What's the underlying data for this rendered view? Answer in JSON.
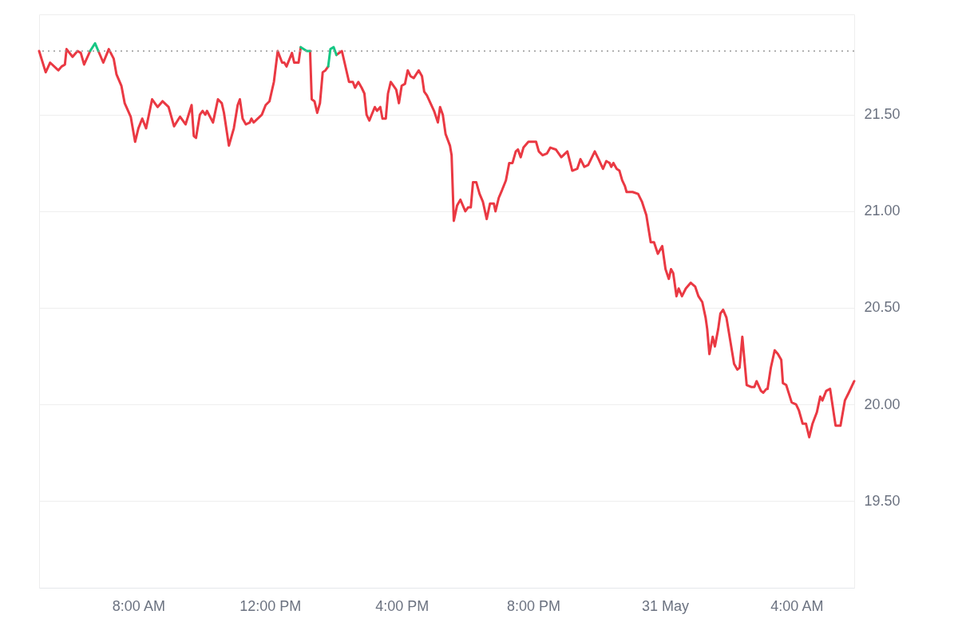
{
  "chart_data": {
    "type": "line",
    "xlim": [
      "--05-30T04:59",
      "--05-31T05:45"
    ],
    "ylim": [
      19.05,
      22.02
    ],
    "xticks": [
      {
        "value": "--05-30T08:00",
        "label": "8:00 AM"
      },
      {
        "value": "--05-30T12:00",
        "label": "12:00 PM"
      },
      {
        "value": "--05-30T16:00",
        "label": "4:00 PM"
      },
      {
        "value": "--05-30T20:00",
        "label": "8:00 PM"
      },
      {
        "value": "--05-31T00:00",
        "label": "31 May"
      },
      {
        "value": "--05-31T04:00",
        "label": "4:00 AM"
      }
    ],
    "yticks": [
      {
        "value": 19.5,
        "label": "19.50"
      },
      {
        "value": 20,
        "label": "20.00"
      },
      {
        "value": 20.5,
        "label": "20.50"
      },
      {
        "value": 21,
        "label": "21.00"
      },
      {
        "value": 21.5,
        "label": "21.50"
      }
    ],
    "grid": "y",
    "marker": "none",
    "line_style": "solid",
    "ref_lines": [
      {
        "axis": "y",
        "value": 21.83,
        "label": null,
        "color": "#999999",
        "line_style": "dotted"
      }
    ],
    "series": [
      {
        "color": "#ea3943",
        "x": [
          "--05-30T04:59",
          "--05-30T05:11",
          "--05-30T05:19",
          "--05-30T05:34",
          "--05-30T05:40",
          "--05-30T05:46",
          "--05-30T05:49",
          "--05-30T06:00",
          "--05-30T06:09",
          "--05-30T06:15",
          "--05-30T06:21",
          "--05-30T06:32",
          "--05-30T06:41",
          "--05-30T06:47",
          "--05-30T06:56",
          "--05-30T07:06",
          "--05-30T07:15",
          "--05-30T07:20",
          "--05-30T07:29",
          "--05-30T07:35",
          "--05-30T07:46",
          "--05-30T07:54",
          "--05-30T08:00",
          "--05-30T08:07",
          "--05-30T08:14",
          "--05-30T08:25",
          "--05-30T08:35",
          "--05-30T08:44",
          "--05-30T08:55",
          "--05-30T09:05",
          "--05-30T09:16",
          "--05-30T09:26",
          "--05-30T09:37",
          "--05-30T09:41",
          "--05-30T09:45",
          "--05-30T09:52",
          "--05-30T09:57",
          "--05-30T10:02",
          "--05-30T10:05",
          "--05-30T10:16",
          "--05-30T10:25",
          "--05-30T10:32",
          "--05-30T10:36",
          "--05-30T10:45",
          "--05-30T10:54",
          "--05-30T11:01",
          "--05-30T11:05",
          "--05-30T11:10",
          "--05-30T11:16",
          "--05-30T11:23",
          "--05-30T11:26",
          "--05-30T11:30",
          "--05-30T11:45",
          "--05-30T11:52",
          "--05-30T11:59",
          "--05-30T12:07",
          "--05-30T12:14",
          "--05-30T12:22",
          "--05-30T12:26",
          "--05-30T12:30",
          "--05-30T12:40",
          "--05-30T12:44",
          "--05-30T12:52",
          "--05-30T12:56",
          "--05-30T13:07",
          "--05-30T13:13",
          "--05-30T13:16",
          "--05-30T13:21",
          "--05-30T13:26",
          "--05-30T13:31",
          "--05-30T13:36",
          "--05-30T13:41",
          "--05-30T13:46",
          "--05-30T13:50",
          "--05-30T13:56",
          "--05-30T14:01",
          "--05-30T14:11",
          "--05-30T14:24",
          "--05-30T14:31",
          "--05-30T14:35",
          "--05-30T14:41",
          "--05-30T14:47",
          "--05-30T14:52",
          "--05-30T14:56",
          "--05-30T15:01",
          "--05-30T15:11",
          "--05-30T15:15",
          "--05-30T15:21",
          "--05-30T15:25",
          "--05-30T15:31",
          "--05-30T15:35",
          "--05-30T15:40",
          "--05-30T15:50",
          "--05-30T15:55",
          "--05-30T16:00",
          "--05-30T16:06",
          "--05-30T16:11",
          "--05-30T16:16",
          "--05-30T16:22",
          "--05-30T16:31",
          "--05-30T16:37",
          "--05-30T16:41",
          "--05-30T16:46",
          "--05-30T16:59",
          "--05-30T17:06",
          "--05-30T17:10",
          "--05-30T17:15",
          "--05-30T17:20",
          "--05-30T17:28",
          "--05-30T17:31",
          "--05-30T17:35",
          "--05-30T17:41",
          "--05-30T17:47",
          "--05-30T17:56",
          "--05-30T18:01",
          "--05-30T18:06",
          "--05-30T18:10",
          "--05-30T18:16",
          "--05-30T18:22",
          "--05-30T18:28",
          "--05-30T18:35",
          "--05-30T18:41",
          "--05-30T18:48",
          "--05-30T18:51",
          "--05-30T18:57",
          "--05-30T19:03",
          "--05-30T19:10",
          "--05-30T19:16",
          "--05-30T19:22",
          "--05-30T19:28",
          "--05-30T19:32",
          "--05-30T19:37",
          "--05-30T19:42",
          "--05-30T19:51",
          "--05-30T20:05",
          "--05-30T20:10",
          "--05-30T20:17",
          "--05-30T20:25",
          "--05-30T20:31",
          "--05-30T20:41",
          "--05-30T20:51",
          "--05-30T21:02",
          "--05-30T21:11",
          "--05-30T21:20",
          "--05-30T21:26",
          "--05-30T21:33",
          "--05-30T21:40",
          "--05-30T21:52",
          "--05-30T21:59",
          "--05-30T22:07",
          "--05-30T22:13",
          "--05-30T22:19",
          "--05-30T22:22",
          "--05-30T22:26",
          "--05-30T22:32",
          "--05-30T22:37",
          "--05-30T22:42",
          "--05-30T22:47",
          "--05-30T22:50",
          "--05-30T23:01",
          "--05-30T23:11",
          "--05-30T23:18",
          "--05-30T23:26",
          "--05-30T23:34",
          "--05-30T23:40",
          "--05-30T23:47",
          "--05-30T23:55",
          "--05-31T00:01",
          "--05-31T00:07",
          "--05-31T00:11",
          "--05-31T00:15",
          "--05-31T00:21",
          "--05-31T00:25",
          "--05-31T00:31",
          "--05-31T00:38",
          "--05-31T00:47",
          "--05-31T00:55",
          "--05-31T01:01",
          "--05-31T01:08",
          "--05-31T01:14",
          "--05-31T01:17",
          "--05-31T01:21",
          "--05-31T01:27",
          "--05-31T01:31",
          "--05-31T01:37",
          "--05-31T01:41",
          "--05-31T01:46",
          "--05-31T01:52",
          "--05-31T01:59",
          "--05-31T02:06",
          "--05-31T02:12",
          "--05-31T02:16",
          "--05-31T02:21",
          "--05-31T02:29",
          "--05-31T02:37",
          "--05-31T02:43",
          "--05-31T02:47",
          "--05-31T02:55",
          "--05-31T02:59",
          "--05-31T03:05",
          "--05-31T03:07",
          "--05-31T03:13",
          "--05-31T03:20",
          "--05-31T03:26",
          "--05-31T03:32",
          "--05-31T03:35",
          "--05-31T03:41",
          "--05-31T03:51",
          "--05-31T03:59",
          "--05-31T04:04",
          "--05-31T04:11",
          "--05-31T04:17",
          "--05-31T04:23",
          "--05-31T04:29",
          "--05-31T04:37",
          "--05-31T04:43",
          "--05-31T04:47",
          "--05-31T04:54",
          "--05-31T05:01",
          "--05-31T05:11",
          "--05-31T05:20",
          "--05-31T05:28",
          "--05-31T05:35",
          "--05-31T05:45"
        ],
        "values": [
          21.83,
          21.72,
          21.77,
          21.73,
          21.75,
          21.76,
          21.84,
          21.8,
          21.83,
          21.82,
          21.76,
          21.83,
          null,
          21.83,
          21.77,
          21.84,
          21.79,
          21.71,
          21.65,
          21.56,
          21.49,
          21.36,
          21.43,
          21.48,
          21.43,
          21.58,
          21.54,
          21.57,
          21.54,
          21.44,
          21.49,
          21.45,
          21.55,
          21.39,
          21.38,
          21.5,
          21.52,
          21.5,
          21.52,
          21.46,
          21.58,
          21.56,
          21.51,
          21.34,
          21.43,
          21.55,
          21.58,
          21.48,
          21.45,
          21.46,
          21.48,
          21.46,
          21.5,
          21.55,
          21.57,
          21.67,
          21.83,
          21.77,
          21.77,
          21.75,
          21.82,
          21.77,
          21.77,
          21.85,
          null,
          21.83,
          21.58,
          21.57,
          21.51,
          21.56,
          21.72,
          21.73,
          21.75,
          null,
          null,
          21.81,
          21.83,
          21.67,
          21.67,
          21.64,
          21.67,
          21.64,
          21.61,
          21.5,
          21.47,
          21.54,
          21.52,
          21.54,
          21.48,
          21.48,
          21.61,
          21.67,
          21.63,
          21.56,
          21.65,
          21.66,
          21.73,
          21.7,
          21.69,
          21.73,
          21.7,
          21.62,
          21.6,
          21.52,
          21.46,
          21.54,
          21.5,
          21.4,
          21.34,
          21.29,
          20.95,
          21.03,
          21.06,
          21.0,
          21.02,
          21.02,
          21.15,
          21.15,
          21.09,
          21.05,
          20.96,
          21.04,
          21.04,
          21.0,
          21.07,
          21.11,
          21.16,
          21.25,
          21.25,
          21.31,
          21.32,
          21.28,
          21.33,
          21.36,
          21.36,
          21.31,
          21.29,
          21.3,
          21.33,
          21.32,
          21.28,
          21.31,
          21.21,
          21.22,
          21.27,
          21.23,
          21.24,
          21.31,
          21.27,
          21.22,
          21.26,
          21.25,
          21.23,
          21.25,
          21.22,
          21.21,
          21.16,
          21.13,
          21.1,
          21.1,
          21.09,
          21.05,
          20.98,
          20.84,
          20.84,
          20.78,
          20.82,
          20.7,
          20.65,
          20.7,
          20.68,
          20.56,
          20.6,
          20.56,
          20.6,
          20.63,
          20.61,
          20.56,
          20.53,
          20.45,
          20.39,
          20.26,
          20.35,
          20.3,
          20.39,
          20.47,
          20.49,
          20.45,
          20.33,
          20.21,
          20.18,
          20.19,
          20.35,
          20.1,
          20.09,
          20.09,
          20.12,
          20.07,
          20.06,
          20.08,
          20.08,
          20.19,
          20.28,
          20.26,
          20.23,
          20.11,
          20.1,
          20.01,
          20.0,
          19.97,
          19.9,
          19.9,
          19.83,
          19.9,
          19.96,
          20.04,
          20.02,
          20.07,
          20.08,
          19.89,
          19.89,
          20.02,
          20.06,
          20.12
        ]
      },
      {
        "color": "#16c784",
        "x": [
          "--05-30T06:32",
          "--05-30T06:41",
          "--05-30T06:47",
          "--05-30T10:00",
          "--05-30T12:56",
          "--05-30T13:07",
          "--05-30T13:13",
          "--05-30T13:30",
          "--05-30T13:46",
          "--05-30T13:50",
          "--05-30T13:56",
          "--05-30T14:01"
        ],
        "values": [
          21.83,
          21.87,
          21.83,
          null,
          21.85,
          21.83,
          21.83,
          null,
          21.75,
          21.84,
          21.85,
          21.81
        ]
      }
    ]
  }
}
